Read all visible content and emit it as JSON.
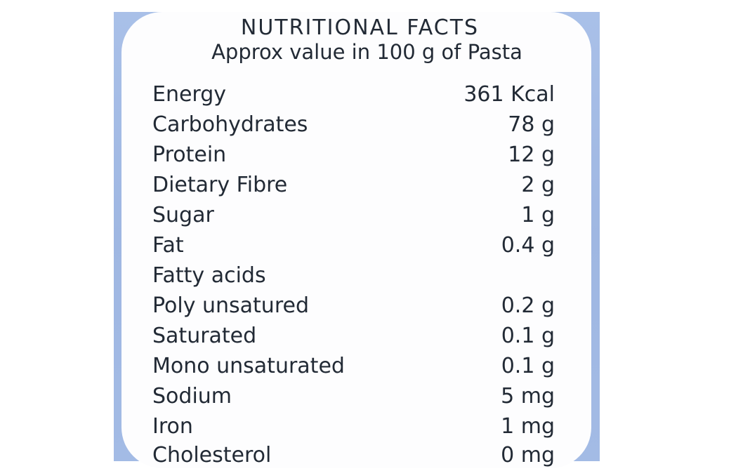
{
  "label": {
    "title": "NUTRITIONAL FACTS",
    "subtitle": "Approx value in 100 g of Pasta",
    "rows": [
      {
        "name": "Energy",
        "value": "361 Kcal"
      },
      {
        "name": "Carbohydrates",
        "value": "78 g"
      },
      {
        "name": "Protein",
        "value": "12 g"
      },
      {
        "name": "Dietary Fibre",
        "value": "2 g"
      },
      {
        "name": "Sugar",
        "value": "1 g"
      },
      {
        "name": "Fat",
        "value": "0.4 g"
      },
      {
        "name": "Fatty acids",
        "value": ""
      },
      {
        "name": "Poly unsatured",
        "value": "0.2 g"
      },
      {
        "name": "Saturated",
        "value": "0.1 g"
      },
      {
        "name": "Mono unsaturated",
        "value": "0.1 g"
      },
      {
        "name": "Sodium",
        "value": "5 mg"
      },
      {
        "name": "Iron",
        "value": "1 mg"
      },
      {
        "name": "Cholesterol",
        "value": "0 mg"
      }
    ]
  }
}
